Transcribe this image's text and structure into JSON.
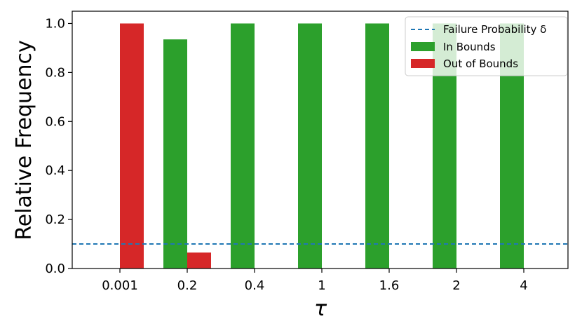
{
  "chart_data": {
    "type": "bar",
    "xlabel": "τ",
    "ylabel": "Relative Frequency",
    "categories": [
      "0.001",
      "0.2",
      "0.4",
      "1",
      "1.6",
      "2",
      "4"
    ],
    "series": [
      {
        "name": "In Bounds",
        "color": "#2ca02c",
        "values": [
          0.0,
          0.935,
          1.0,
          1.0,
          1.0,
          1.0,
          1.0
        ]
      },
      {
        "name": "Out of Bounds",
        "color": "#d62728",
        "values": [
          1.0,
          0.065,
          0.0,
          0.0,
          0.0,
          0.0,
          0.0
        ]
      }
    ],
    "reference_line": {
      "name": "Failure Probability δ",
      "value": 0.1,
      "color": "#1f77b4",
      "style": "dashed"
    },
    "ylim": [
      0,
      1.05
    ],
    "yticks": [
      "0.0",
      "0.2",
      "0.4",
      "0.6",
      "0.8",
      "1.0"
    ],
    "legend_position": "top-right",
    "grid": false
  }
}
